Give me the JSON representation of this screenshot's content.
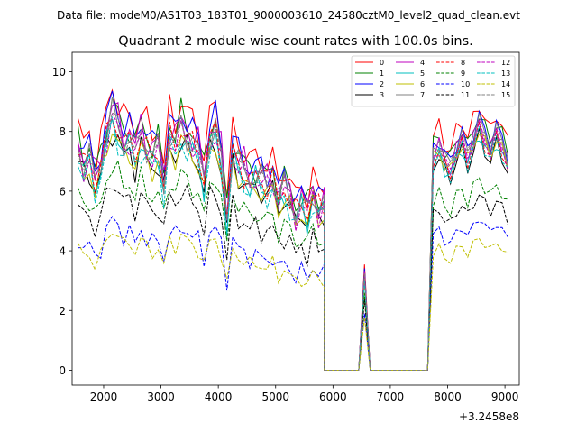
{
  "chart_data": {
    "type": "line",
    "suptitle": "Data file: modeM0/AS1T03_183T01_9000003610_24580cztM0_level2_quad_clean.evt",
    "title": "Quadrant 2 module wise count rates with 100.0s bins.",
    "xlabel": "",
    "ylabel": "",
    "x_offset_label": "+3.2458e8",
    "xlim": [
      1450,
      9250
    ],
    "ylim": [
      -0.5,
      10.65
    ],
    "xticks": [
      2000,
      3000,
      4000,
      5000,
      6000,
      7000,
      8000,
      9000
    ],
    "yticks": [
      0,
      2,
      4,
      6,
      8,
      10
    ],
    "legend_position": "top-right",
    "gap_x": [
      5850,
      5950,
      6050,
      6150,
      6250,
      6350,
      6450,
      6550,
      6650,
      6750,
      6850,
      6950,
      7050,
      7150,
      7250,
      7350,
      7450,
      7550,
      7650
    ],
    "gap_mult": [
      0,
      0,
      0,
      0,
      0,
      0,
      0,
      0.72,
      0,
      0,
      0,
      0,
      0,
      0,
      0,
      0,
      0,
      0,
      0
    ],
    "seg1_x": [
      1550,
      1650,
      1750,
      1850,
      1950,
      2050,
      2150,
      2250,
      2350,
      2450,
      2550,
      2650,
      2750,
      2850,
      2950,
      3050,
      3150,
      3250,
      3350,
      3450,
      3550,
      3650,
      3750,
      3850,
      3950,
      4050,
      4150,
      4250,
      4350,
      4450,
      4550,
      4650,
      4750,
      4850,
      4950,
      5050,
      5150,
      5250,
      5350,
      5450,
      5550,
      5650,
      5750,
      5850
    ],
    "seg1_profile": [
      1.0,
      0.93,
      0.96,
      0.85,
      0.93,
      1.07,
      1.15,
      1.1,
      1.02,
      1.05,
      0.97,
      1.07,
      1.0,
      0.97,
      0.99,
      0.85,
      1.06,
      1.02,
      1.09,
      1.06,
      1.02,
      0.99,
      0.85,
      1.05,
      1.08,
      0.96,
      0.68,
      1.0,
      0.92,
      0.9,
      0.85,
      0.88,
      0.85,
      0.84,
      0.86,
      0.77,
      0.82,
      0.78,
      0.7,
      0.76,
      0.7,
      0.8,
      0.72,
      0.75
    ],
    "seg3_x": [
      7750,
      7850,
      7950,
      8050,
      8150,
      8250,
      8350,
      8450,
      8550,
      8650,
      8750,
      8850,
      8950,
      9050
    ],
    "seg3_profile": [
      0.98,
      1.02,
      0.95,
      0.92,
      1.0,
      1.05,
      0.97,
      1.05,
      1.12,
      1.05,
      1.0,
      1.08,
      1.02,
      0.95
    ],
    "series": [
      {
        "name": "0",
        "color": "#ff0000",
        "dashed": false,
        "level": 8.2,
        "seg3_level": 8.0
      },
      {
        "name": "1",
        "color": "#008000",
        "dashed": false,
        "level": 7.8,
        "seg3_level": 7.7
      },
      {
        "name": "2",
        "color": "#0000ff",
        "dashed": false,
        "level": 7.9,
        "seg3_level": 7.6
      },
      {
        "name": "3",
        "color": "#000000",
        "dashed": false,
        "level": 7.0,
        "seg3_level": 7.0
      },
      {
        "name": "4",
        "color": "#bf00bf",
        "dashed": false,
        "level": 7.7,
        "seg3_level": 7.4
      },
      {
        "name": "5",
        "color": "#00bfbf",
        "dashed": false,
        "level": 7.2,
        "seg3_level": 7.1
      },
      {
        "name": "6",
        "color": "#bfbf00",
        "dashed": false,
        "level": 7.0,
        "seg3_level": 7.2
      },
      {
        "name": "7",
        "color": "#808080",
        "dashed": false,
        "level": 7.5,
        "seg3_level": 7.5
      },
      {
        "name": "8",
        "color": "#ff0000",
        "dashed": true,
        "level": 7.4,
        "seg3_level": 7.2
      },
      {
        "name": "9",
        "color": "#008000",
        "dashed": true,
        "level": 6.0,
        "seg3_level": 5.8
      },
      {
        "name": "10",
        "color": "#0000ff",
        "dashed": true,
        "level": 4.4,
        "seg3_level": 4.6
      },
      {
        "name": "11",
        "color": "#000000",
        "dashed": true,
        "level": 5.5,
        "seg3_level": 5.3
      },
      {
        "name": "12",
        "color": "#bf00bf",
        "dashed": true,
        "level": 7.3,
        "seg3_level": 7.3
      },
      {
        "name": "13",
        "color": "#00bfbf",
        "dashed": true,
        "level": 7.0,
        "seg3_level": 7.1
      },
      {
        "name": "14",
        "color": "#bfbf00",
        "dashed": true,
        "level": 4.1,
        "seg3_level": 4.0
      },
      {
        "name": "15",
        "color": "#808080",
        "dashed": true,
        "level": 7.4,
        "seg3_level": 7.4
      }
    ]
  }
}
